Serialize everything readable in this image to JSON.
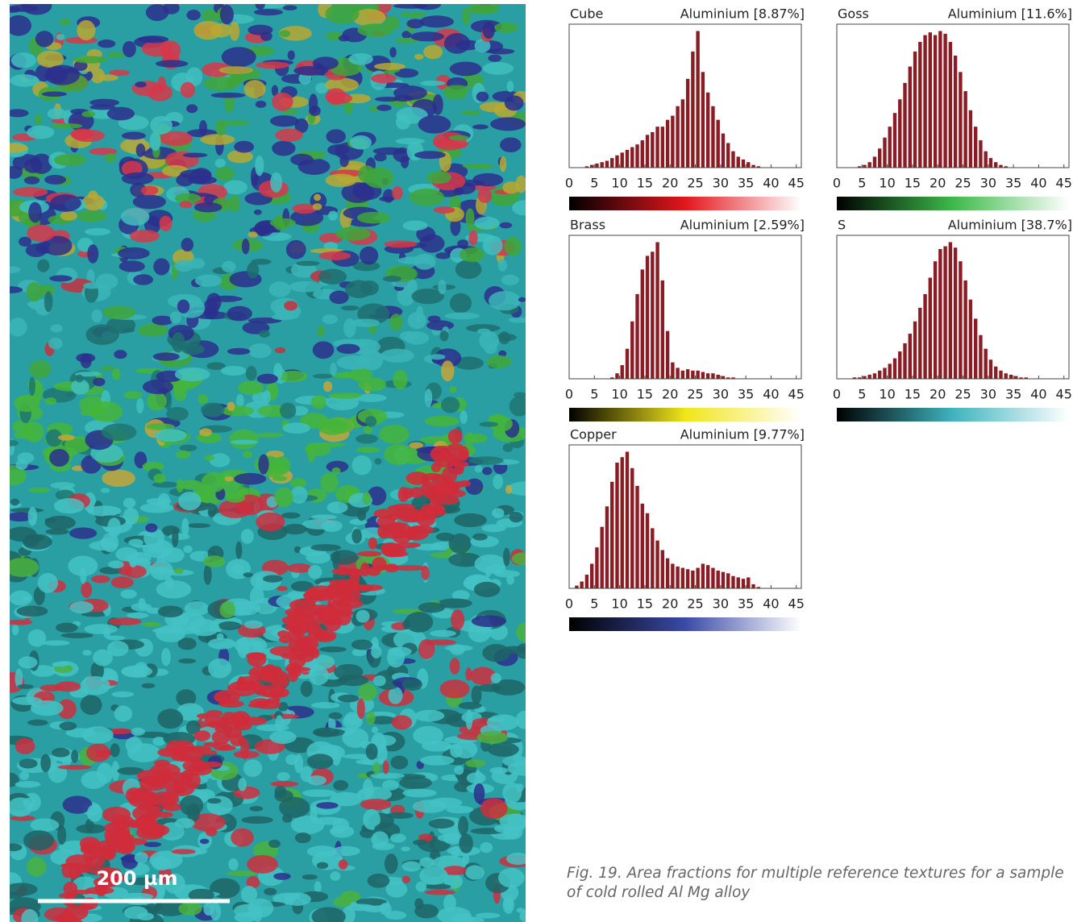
{
  "chart_data": [
    {
      "type": "histogram",
      "title": "Cube",
      "subtitle": "Aluminium [8.87%]",
      "color": "#8b1c24",
      "colorbar": [
        "#000000",
        "#e3161d",
        "#ffffff"
      ],
      "bins": [
        3,
        4,
        5,
        6,
        7,
        8,
        9,
        10,
        11,
        12,
        13,
        14,
        15,
        16,
        17,
        18,
        19,
        20,
        21,
        22,
        23,
        24,
        25,
        26,
        27,
        28,
        29,
        30,
        31,
        32,
        33,
        34,
        35,
        36,
        37,
        38
      ],
      "values": [
        1,
        2,
        3,
        4,
        5,
        7,
        9,
        11,
        13,
        15,
        17,
        20,
        24,
        26,
        30,
        30,
        35,
        38,
        45,
        50,
        65,
        85,
        100,
        70,
        55,
        45,
        35,
        25,
        18,
        12,
        8,
        6,
        4,
        2,
        1
      ],
      "xlim": [
        0,
        46
      ],
      "xticks": [
        0,
        5,
        10,
        15,
        20,
        25,
        30,
        35,
        40,
        45
      ],
      "ylim": [
        0,
        105
      ]
    },
    {
      "type": "histogram",
      "title": "Goss",
      "subtitle": "Aluminium [11.6%]",
      "color": "#8b1c24",
      "colorbar": [
        "#000000",
        "#3db94a",
        "#ffffff"
      ],
      "bins": [
        4,
        5,
        6,
        7,
        8,
        9,
        10,
        11,
        12,
        13,
        14,
        15,
        16,
        17,
        18,
        19,
        20,
        21,
        22,
        23,
        24,
        25,
        26,
        27,
        28,
        29,
        30,
        31,
        32,
        33,
        34
      ],
      "values": [
        1,
        2,
        4,
        8,
        14,
        22,
        30,
        40,
        50,
        62,
        74,
        85,
        92,
        97,
        99,
        97,
        100,
        98,
        92,
        82,
        70,
        56,
        42,
        30,
        20,
        12,
        7,
        4,
        2,
        1
      ],
      "xlim": [
        0,
        46
      ],
      "xticks": [
        0,
        5,
        10,
        15,
        20,
        25,
        30,
        35,
        40,
        45
      ],
      "ylim": [
        0,
        105
      ]
    },
    {
      "type": "histogram",
      "title": "Brass",
      "subtitle": "Aluminium [2.59%]",
      "color": "#8b1c24",
      "colorbar": [
        "#000000",
        "#f2e51a",
        "#ffffff"
      ],
      "bins": [
        8,
        9,
        10,
        11,
        12,
        13,
        14,
        15,
        16,
        17,
        18,
        19,
        20,
        21,
        22,
        23,
        24,
        25,
        26,
        27,
        28,
        29,
        30,
        31,
        32,
        33
      ],
      "values": [
        1,
        4,
        10,
        22,
        42,
        62,
        80,
        90,
        93,
        100,
        72,
        35,
        12,
        8,
        6,
        7,
        6,
        6,
        5,
        4,
        4,
        3,
        2,
        1,
        1
      ],
      "xlim": [
        0,
        46
      ],
      "xticks": [
        0,
        5,
        10,
        15,
        20,
        25,
        30,
        35,
        40,
        45
      ],
      "ylim": [
        0,
        105
      ]
    },
    {
      "type": "histogram",
      "title": "S",
      "subtitle": "Aluminium [38.7%]",
      "color": "#8b1c24",
      "colorbar": [
        "#000000",
        "#3fb3c0",
        "#ffffff"
      ],
      "bins": [
        3,
        4,
        5,
        6,
        7,
        8,
        9,
        10,
        11,
        12,
        13,
        14,
        15,
        16,
        17,
        18,
        19,
        20,
        21,
        22,
        23,
        24,
        25,
        26,
        27,
        28,
        29,
        30,
        31,
        32,
        33,
        34,
        35,
        36,
        37,
        38
      ],
      "values": [
        1,
        1,
        2,
        3,
        4,
        6,
        8,
        11,
        15,
        20,
        26,
        33,
        42,
        52,
        62,
        74,
        86,
        95,
        97,
        100,
        96,
        86,
        72,
        58,
        44,
        32,
        22,
        14,
        9,
        6,
        4,
        3,
        2,
        1,
        1
      ],
      "xlim": [
        0,
        46
      ],
      "xticks": [
        0,
        5,
        10,
        15,
        20,
        25,
        30,
        35,
        40,
        45
      ],
      "ylim": [
        0,
        105
      ]
    },
    {
      "type": "histogram",
      "title": "Copper",
      "subtitle": "Aluminium [9.77%]",
      "color": "#8b1c24",
      "colorbar": [
        "#000000",
        "#3a4aa8",
        "#ffffff"
      ],
      "bins": [
        1,
        2,
        3,
        4,
        5,
        6,
        7,
        8,
        9,
        10,
        11,
        12,
        13,
        14,
        15,
        16,
        17,
        18,
        19,
        20,
        21,
        22,
        23,
        24,
        25,
        26,
        27,
        28,
        29,
        30,
        31,
        32,
        33,
        34,
        35,
        36,
        37,
        38
      ],
      "values": [
        2,
        5,
        10,
        18,
        30,
        45,
        60,
        78,
        92,
        96,
        100,
        88,
        75,
        62,
        55,
        44,
        35,
        28,
        22,
        18,
        16,
        15,
        14,
        13,
        15,
        18,
        17,
        15,
        13,
        12,
        11,
        9,
        8,
        7,
        8,
        3,
        1
      ],
      "xlim": [
        0,
        46
      ],
      "xticks": [
        0,
        5,
        10,
        15,
        20,
        25,
        30,
        35,
        40,
        45
      ],
      "ylim": [
        0,
        105
      ]
    }
  ],
  "map": {
    "scale_bar": "200 µm"
  },
  "caption": "Fig. 19. Area fractions for multiple reference textures for a sample of cold rolled Al Mg alloy"
}
